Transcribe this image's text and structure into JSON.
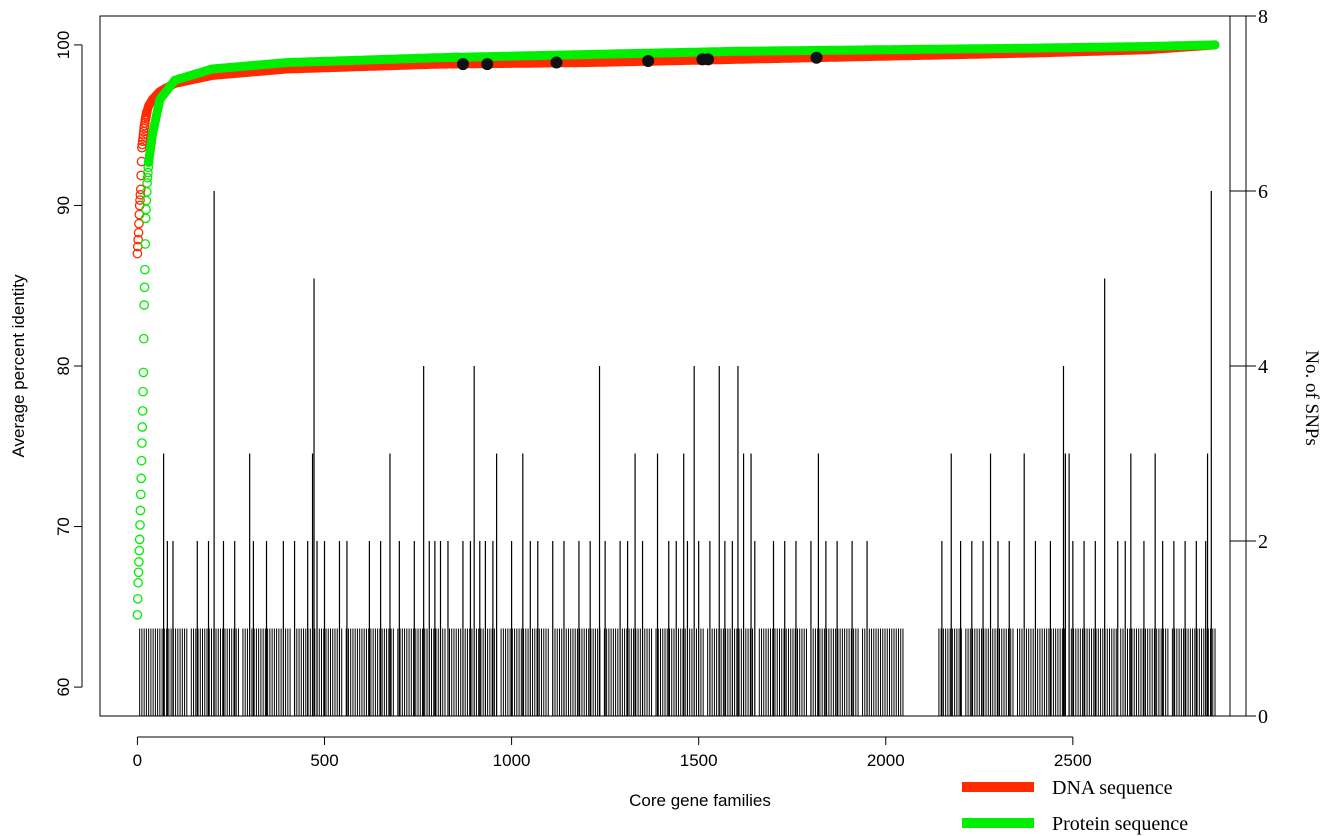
{
  "chart_data": {
    "type": "scatter",
    "xlabel": "Core gene families",
    "ylabel_left": "Average percent identity",
    "ylabel_right": "No. of SNPs",
    "xlim": [
      -100,
      2920
    ],
    "ylim_left": [
      58.2,
      101.8
    ],
    "ylim_right": [
      0,
      8
    ],
    "x_ticks": [
      0,
      500,
      1000,
      1500,
      2000,
      2500
    ],
    "y_ticks_left": [
      60,
      70,
      80,
      90,
      100
    ],
    "y_ticks_right": [
      0,
      2,
      4,
      6,
      8
    ],
    "grid": false,
    "legend_position": "bottom-right",
    "series": [
      {
        "name": "DNA sequence",
        "color": "#ff2a00",
        "kind": "identity_curve",
        "axis": "left",
        "x": [
          0,
          3,
          6,
          9,
          12,
          15,
          18,
          21,
          25,
          30,
          40,
          60,
          100,
          200,
          400,
          800,
          1200,
          1600,
          2000,
          2400,
          2700,
          2880
        ],
        "y": [
          87.0,
          88.3,
          90.0,
          91.0,
          93.6,
          94.2,
          94.8,
          95.3,
          95.8,
          96.2,
          96.6,
          97.1,
          97.6,
          98.1,
          98.5,
          98.8,
          98.9,
          99.1,
          99.3,
          99.5,
          99.7,
          100.0
        ]
      },
      {
        "name": "Protein sequence",
        "color": "#00ee00",
        "kind": "identity_curve",
        "axis": "left",
        "x": [
          0,
          2,
          4,
          6,
          8,
          10,
          12,
          14,
          16,
          18,
          20,
          22,
          26,
          30,
          40,
          60,
          100,
          200,
          400,
          800,
          1200,
          1600,
          2000,
          2400,
          2700,
          2880
        ],
        "y": [
          64.5,
          66.5,
          67.8,
          69.2,
          71.0,
          73.0,
          75.2,
          77.2,
          79.6,
          83.8,
          86.0,
          89.2,
          91.4,
          92.7,
          94.4,
          96.6,
          97.8,
          98.5,
          98.9,
          99.2,
          99.4,
          99.6,
          99.7,
          99.8,
          99.9,
          100.0
        ]
      },
      {
        "name": "",
        "color": "#111111",
        "kind": "highlight_points",
        "axis": "left",
        "x": [
          870,
          935,
          1120,
          1365,
          1510,
          1525,
          1815
        ],
        "y": [
          98.8,
          98.8,
          98.9,
          99.0,
          99.1,
          99.1,
          99.2
        ]
      },
      {
        "name": "",
        "color": "#000000",
        "kind": "snp_counts",
        "axis": "right",
        "x_range": [
          0,
          2880
        ],
        "counts_gt1": [
          [
            70,
            3
          ],
          [
            205,
            6
          ],
          [
            300,
            3
          ],
          [
            468,
            3
          ],
          [
            472,
            5
          ],
          [
            675,
            3
          ],
          [
            765,
            4
          ],
          [
            900,
            4
          ],
          [
            960,
            3
          ],
          [
            1030,
            3
          ],
          [
            1235,
            4
          ],
          [
            1330,
            3
          ],
          [
            1390,
            3
          ],
          [
            1460,
            3
          ],
          [
            1488,
            4
          ],
          [
            1555,
            4
          ],
          [
            1605,
            4
          ],
          [
            1620,
            3
          ],
          [
            1640,
            3
          ],
          [
            1820,
            3
          ],
          [
            2175,
            3
          ],
          [
            2280,
            3
          ],
          [
            2370,
            3
          ],
          [
            2475,
            4
          ],
          [
            2480,
            3
          ],
          [
            2490,
            3
          ],
          [
            2585,
            5
          ],
          [
            2655,
            3
          ],
          [
            2720,
            3
          ],
          [
            2860,
            3
          ],
          [
            2870,
            6
          ],
          [
            80,
            2
          ],
          [
            95,
            2
          ],
          [
            160,
            2
          ],
          [
            190,
            2
          ],
          [
            230,
            2
          ],
          [
            260,
            2
          ],
          [
            310,
            2
          ],
          [
            345,
            2
          ],
          [
            390,
            2
          ],
          [
            420,
            2
          ],
          [
            455,
            2
          ],
          [
            480,
            2
          ],
          [
            500,
            2
          ],
          [
            540,
            2
          ],
          [
            560,
            2
          ],
          [
            620,
            2
          ],
          [
            650,
            2
          ],
          [
            700,
            2
          ],
          [
            740,
            2
          ],
          [
            780,
            2
          ],
          [
            795,
            2
          ],
          [
            810,
            2
          ],
          [
            830,
            2
          ],
          [
            870,
            2
          ],
          [
            890,
            2
          ],
          [
            915,
            2
          ],
          [
            930,
            2
          ],
          [
            950,
            2
          ],
          [
            1000,
            2
          ],
          [
            1050,
            2
          ],
          [
            1070,
            2
          ],
          [
            1110,
            2
          ],
          [
            1140,
            2
          ],
          [
            1180,
            2
          ],
          [
            1210,
            2
          ],
          [
            1250,
            2
          ],
          [
            1290,
            2
          ],
          [
            1310,
            2
          ],
          [
            1350,
            2
          ],
          [
            1420,
            2
          ],
          [
            1440,
            2
          ],
          [
            1470,
            2
          ],
          [
            1500,
            2
          ],
          [
            1530,
            2
          ],
          [
            1570,
            2
          ],
          [
            1590,
            2
          ],
          [
            1650,
            2
          ],
          [
            1700,
            2
          ],
          [
            1730,
            2
          ],
          [
            1760,
            2
          ],
          [
            1800,
            2
          ],
          [
            1840,
            2
          ],
          [
            1870,
            2
          ],
          [
            1910,
            2
          ],
          [
            1950,
            2
          ],
          [
            2150,
            2
          ],
          [
            2200,
            2
          ],
          [
            2230,
            2
          ],
          [
            2260,
            2
          ],
          [
            2300,
            2
          ],
          [
            2330,
            2
          ],
          [
            2400,
            2
          ],
          [
            2440,
            2
          ],
          [
            2500,
            2
          ],
          [
            2530,
            2
          ],
          [
            2560,
            2
          ],
          [
            2620,
            2
          ],
          [
            2640,
            2
          ],
          [
            2690,
            2
          ],
          [
            2740,
            2
          ],
          [
            2770,
            2
          ],
          [
            2800,
            2
          ],
          [
            2830,
            2
          ],
          [
            2855,
            2
          ]
        ],
        "baseline_count": 1,
        "baseline_gaps": [
          [
            2050,
            2140
          ]
        ]
      }
    ]
  }
}
